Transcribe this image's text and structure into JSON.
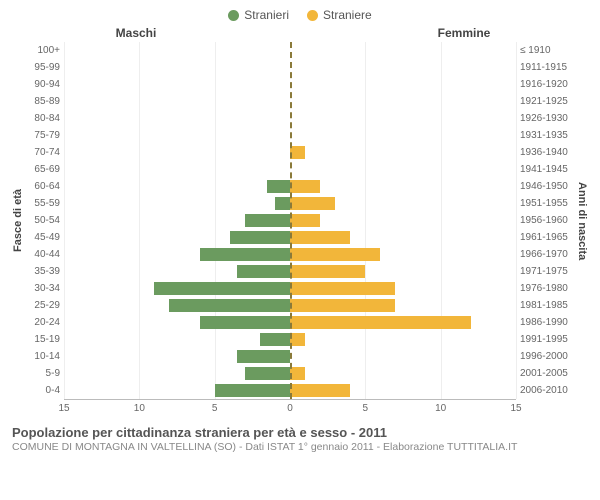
{
  "legend": {
    "male": {
      "label": "Stranieri",
      "color": "#6b9b5f"
    },
    "female": {
      "label": "Straniere",
      "color": "#f2b63a"
    }
  },
  "headers": {
    "left": "Maschi",
    "right": "Femmine"
  },
  "axis_titles": {
    "left": "Fasce di età",
    "right": "Anni di nascita"
  },
  "xlim": 15,
  "xtick_step": 5,
  "xticks_left": [
    "15",
    "10",
    "5",
    "0"
  ],
  "xticks_right": [
    "0",
    "5",
    "10",
    "15"
  ],
  "grid_color": "#eeeeee",
  "center_line_color": "#8a7a3a",
  "background_color": "#ffffff",
  "rows": [
    {
      "age": "100+",
      "birth": "≤ 1910",
      "m": 0,
      "f": 0
    },
    {
      "age": "95-99",
      "birth": "1911-1915",
      "m": 0,
      "f": 0
    },
    {
      "age": "90-94",
      "birth": "1916-1920",
      "m": 0,
      "f": 0
    },
    {
      "age": "85-89",
      "birth": "1921-1925",
      "m": 0,
      "f": 0
    },
    {
      "age": "80-84",
      "birth": "1926-1930",
      "m": 0,
      "f": 0
    },
    {
      "age": "75-79",
      "birth": "1931-1935",
      "m": 0,
      "f": 0
    },
    {
      "age": "70-74",
      "birth": "1936-1940",
      "m": 0,
      "f": 1
    },
    {
      "age": "65-69",
      "birth": "1941-1945",
      "m": 0,
      "f": 0
    },
    {
      "age": "60-64",
      "birth": "1946-1950",
      "m": 1.5,
      "f": 2
    },
    {
      "age": "55-59",
      "birth": "1951-1955",
      "m": 1,
      "f": 3
    },
    {
      "age": "50-54",
      "birth": "1956-1960",
      "m": 3,
      "f": 2
    },
    {
      "age": "45-49",
      "birth": "1961-1965",
      "m": 4,
      "f": 4
    },
    {
      "age": "40-44",
      "birth": "1966-1970",
      "m": 6,
      "f": 6
    },
    {
      "age": "35-39",
      "birth": "1971-1975",
      "m": 3.5,
      "f": 5
    },
    {
      "age": "30-34",
      "birth": "1976-1980",
      "m": 9,
      "f": 7
    },
    {
      "age": "25-29",
      "birth": "1981-1985",
      "m": 8,
      "f": 7
    },
    {
      "age": "20-24",
      "birth": "1986-1990",
      "m": 6,
      "f": 12
    },
    {
      "age": "15-19",
      "birth": "1991-1995",
      "m": 2,
      "f": 1
    },
    {
      "age": "10-14",
      "birth": "1996-2000",
      "m": 3.5,
      "f": 0
    },
    {
      "age": "5-9",
      "birth": "2001-2005",
      "m": 3,
      "f": 1
    },
    {
      "age": "0-4",
      "birth": "2006-2010",
      "m": 5,
      "f": 4
    }
  ],
  "footer": {
    "title": "Popolazione per cittadinanza straniera per età e sesso - 2011",
    "subtitle": "COMUNE DI MONTAGNA IN VALTELLINA (SO) - Dati ISTAT 1° gennaio 2011 - Elaborazione TUTTITALIA.IT"
  }
}
